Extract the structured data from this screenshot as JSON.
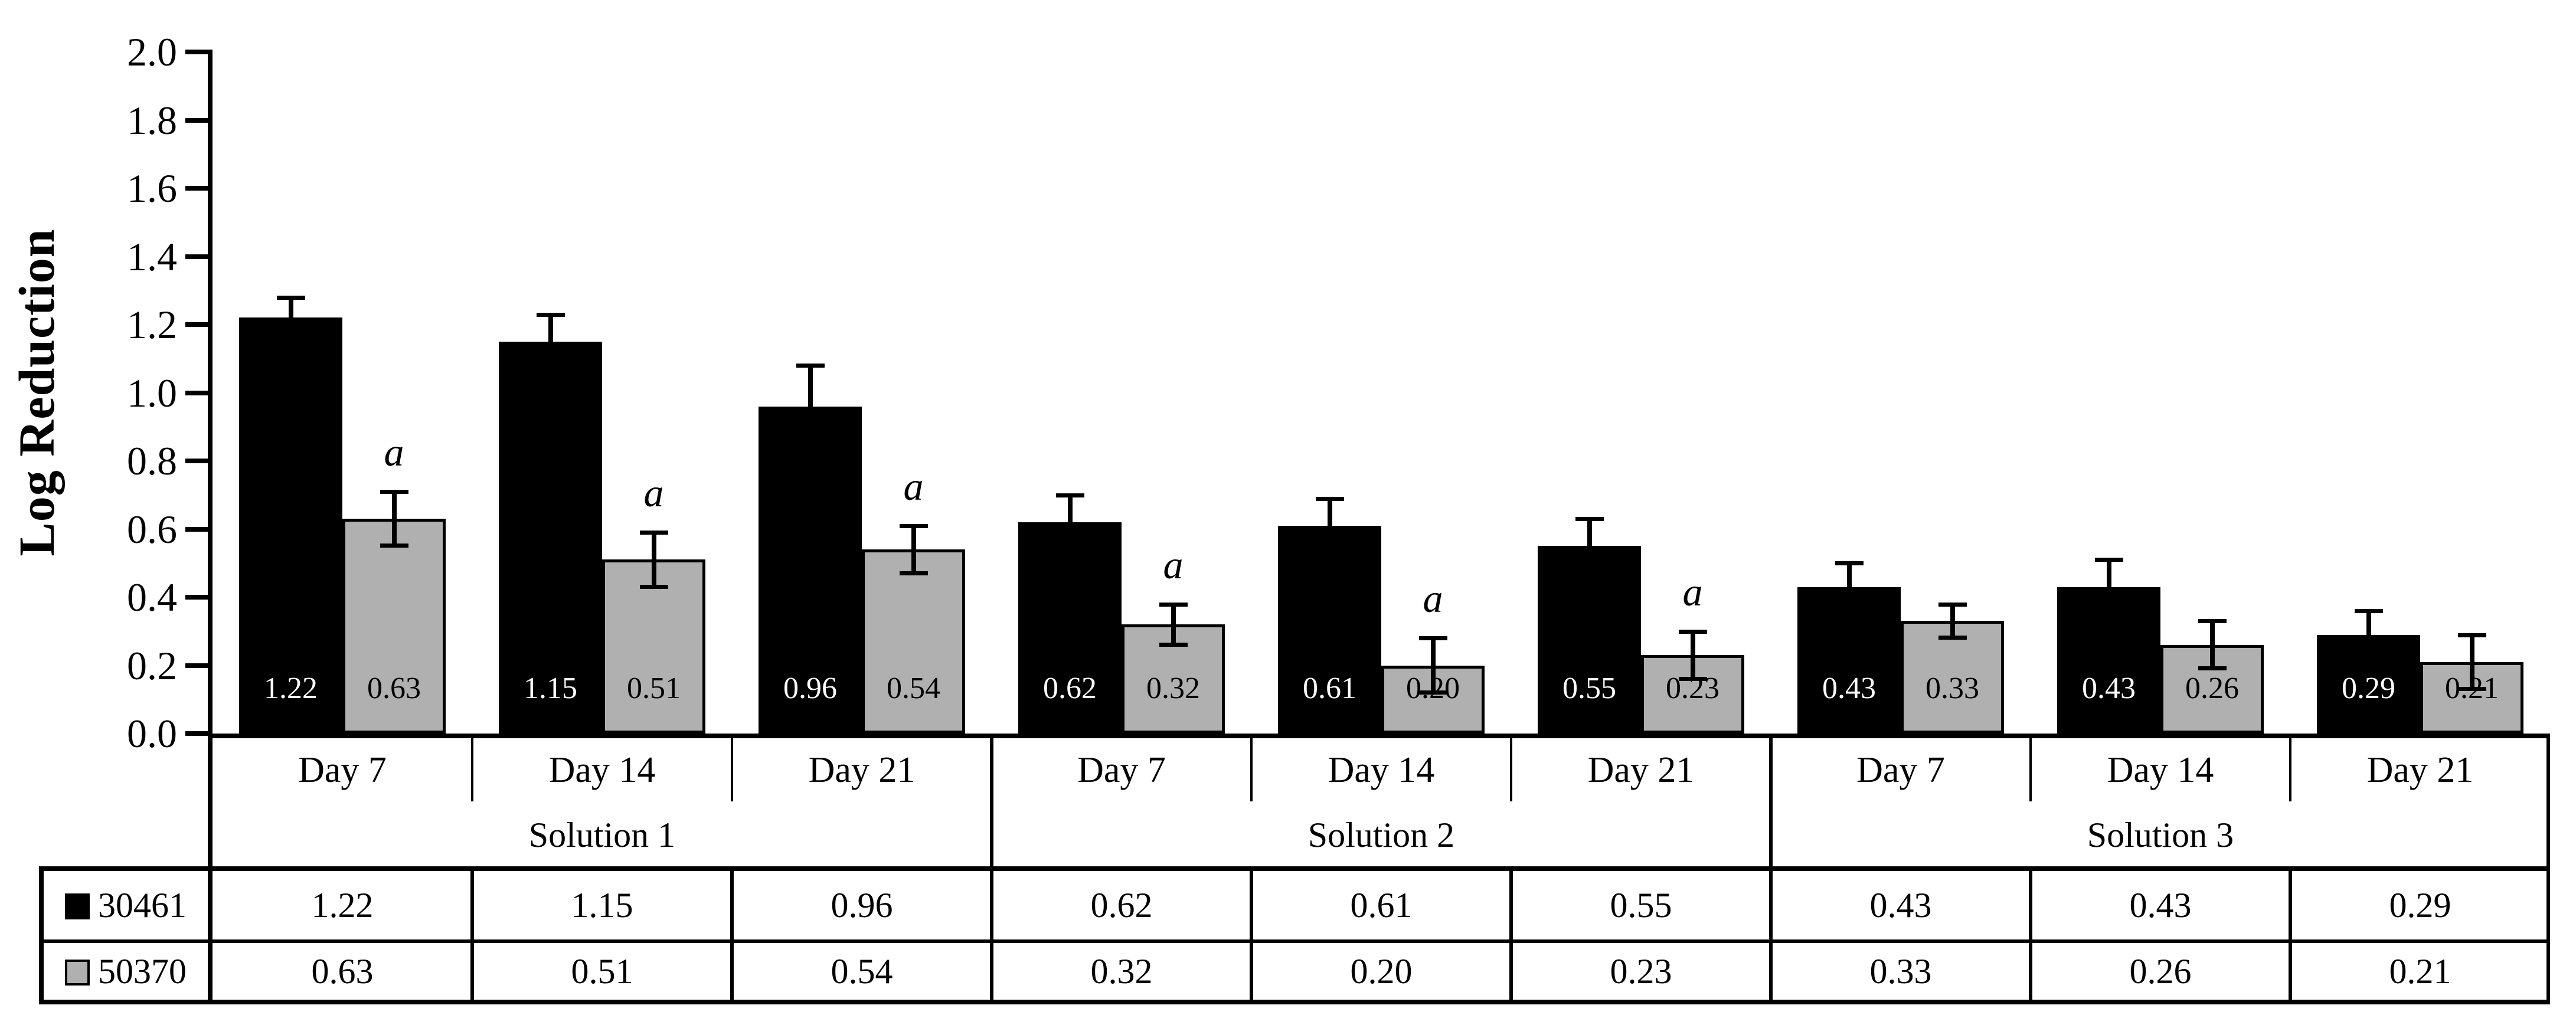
{
  "figure": {
    "ylabel": "Log Reduction"
  },
  "chart_data": {
    "type": "bar",
    "title": "",
    "xlabel": "",
    "ylabel": "Log Reduction",
    "ylim": [
      0.0,
      2.0
    ],
    "ytick_step": 0.2,
    "grid": false,
    "legend_position": "table-left-column",
    "solutions": [
      "Solution 1",
      "Solution 2",
      "Solution 3"
    ],
    "categories": [
      "Day 7",
      "Day 14",
      "Day 21",
      "Day 7",
      "Day 14",
      "Day 21",
      "Day 7",
      "Day 14",
      "Day 21"
    ],
    "series": [
      {
        "name": "30461",
        "color": "#000000",
        "label_text_color": "#ffffff",
        "values": [
          1.22,
          1.15,
          0.96,
          0.62,
          0.61,
          0.55,
          0.43,
          0.43,
          0.29
        ],
        "errors_up": [
          0.06,
          0.08,
          0.12,
          0.08,
          0.08,
          0.08,
          0.07,
          0.08,
          0.07
        ],
        "errors_down": [
          0,
          0,
          0,
          0,
          0,
          0,
          0,
          0,
          0
        ],
        "sig_labels": [
          "",
          "",
          "",
          "",
          "",
          "",
          "",
          "",
          ""
        ]
      },
      {
        "name": "50370",
        "color": "#b0b0b0",
        "label_text_color": "#000000",
        "values": [
          0.63,
          0.51,
          0.54,
          0.32,
          0.2,
          0.23,
          0.33,
          0.26,
          0.21
        ],
        "errors_up": [
          0.08,
          0.08,
          0.07,
          0.06,
          0.08,
          0.07,
          0.05,
          0.07,
          0.08
        ],
        "errors_down": [
          0.08,
          0.08,
          0.07,
          0.06,
          0.08,
          0.07,
          0.05,
          0.07,
          0.08
        ],
        "sig_labels": [
          "a",
          "a",
          "a",
          "a",
          "a",
          "a",
          "",
          "",
          ""
        ]
      }
    ],
    "bar_value_labels_decimals": 2
  },
  "table": {
    "rows": [
      {
        "legend_label": "30461",
        "marker": "black-square",
        "marker_color": "#000000",
        "values": [
          "1.22",
          "1.15",
          "0.96",
          "0.62",
          "0.61",
          "0.55",
          "0.43",
          "0.43",
          "0.29"
        ]
      },
      {
        "legend_label": "50370",
        "marker": "gray-square",
        "marker_color": "#b0b0b0",
        "values": [
          "0.63",
          "0.51",
          "0.54",
          "0.32",
          "0.20",
          "0.23",
          "0.33",
          "0.26",
          "0.21"
        ]
      }
    ]
  }
}
